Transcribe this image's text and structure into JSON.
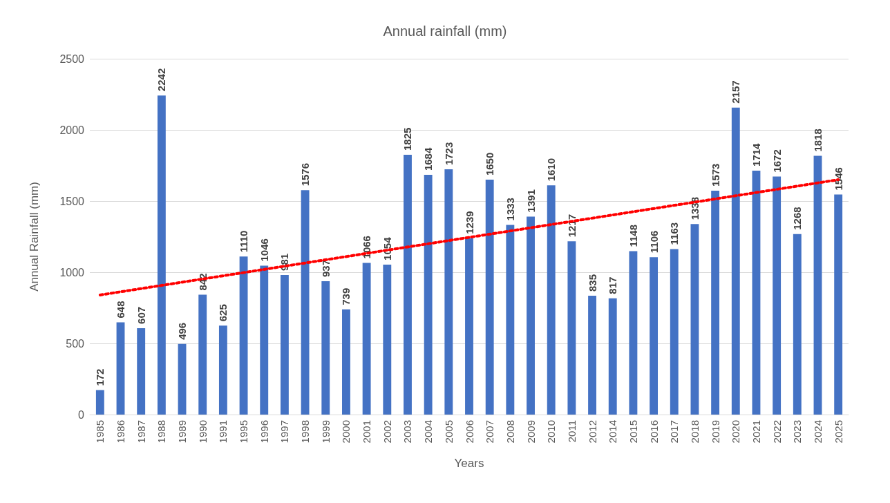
{
  "chart_data": {
    "type": "bar",
    "title": "Annual rainfall (mm)",
    "xlabel": "Years",
    "ylabel": "Annual Rainfall (mm)",
    "categories": [
      "1985",
      "1986",
      "1987",
      "1988",
      "1989",
      "1990",
      "1991",
      "1995",
      "1996",
      "1997",
      "1998",
      "1999",
      "2000",
      "2001",
      "2002",
      "2003",
      "2004",
      "2005",
      "2006",
      "2007",
      "2008",
      "2009",
      "2010",
      "2011",
      "2012",
      "2014",
      "2015",
      "2016",
      "2017",
      "2018",
      "2019",
      "2020",
      "2021",
      "2022",
      "2023",
      "2024",
      "2025"
    ],
    "series": [
      {
        "color": "#4472c4",
        "data_labels": true,
        "values": [
          172,
          648,
          607,
          2242,
          496,
          842,
          625,
          1110,
          1046,
          981,
          1576,
          937,
          739,
          1066,
          1054,
          1825,
          1684,
          1723,
          1239,
          1650,
          1333,
          1391,
          1610,
          1217,
          835,
          817,
          1148,
          1106,
          1163,
          1338,
          1573,
          2157,
          1714,
          1672,
          1268,
          1818,
          1546
        ]
      },
      {
        "type": "line",
        "color": "#ff0000",
        "line_style": "dotted",
        "marker": "none",
        "values": [
          840,
          null,
          null,
          null,
          null,
          null,
          null,
          null,
          null,
          null,
          null,
          null,
          null,
          null,
          null,
          null,
          null,
          null,
          null,
          null,
          null,
          null,
          null,
          null,
          null,
          null,
          null,
          null,
          null,
          null,
          null,
          null,
          null,
          null,
          null,
          null,
          1650
        ]
      }
    ],
    "ylim": [
      0,
      2500
    ],
    "yticks": [
      0,
      500,
      1000,
      1500,
      2000,
      2500
    ],
    "grid": "y"
  }
}
